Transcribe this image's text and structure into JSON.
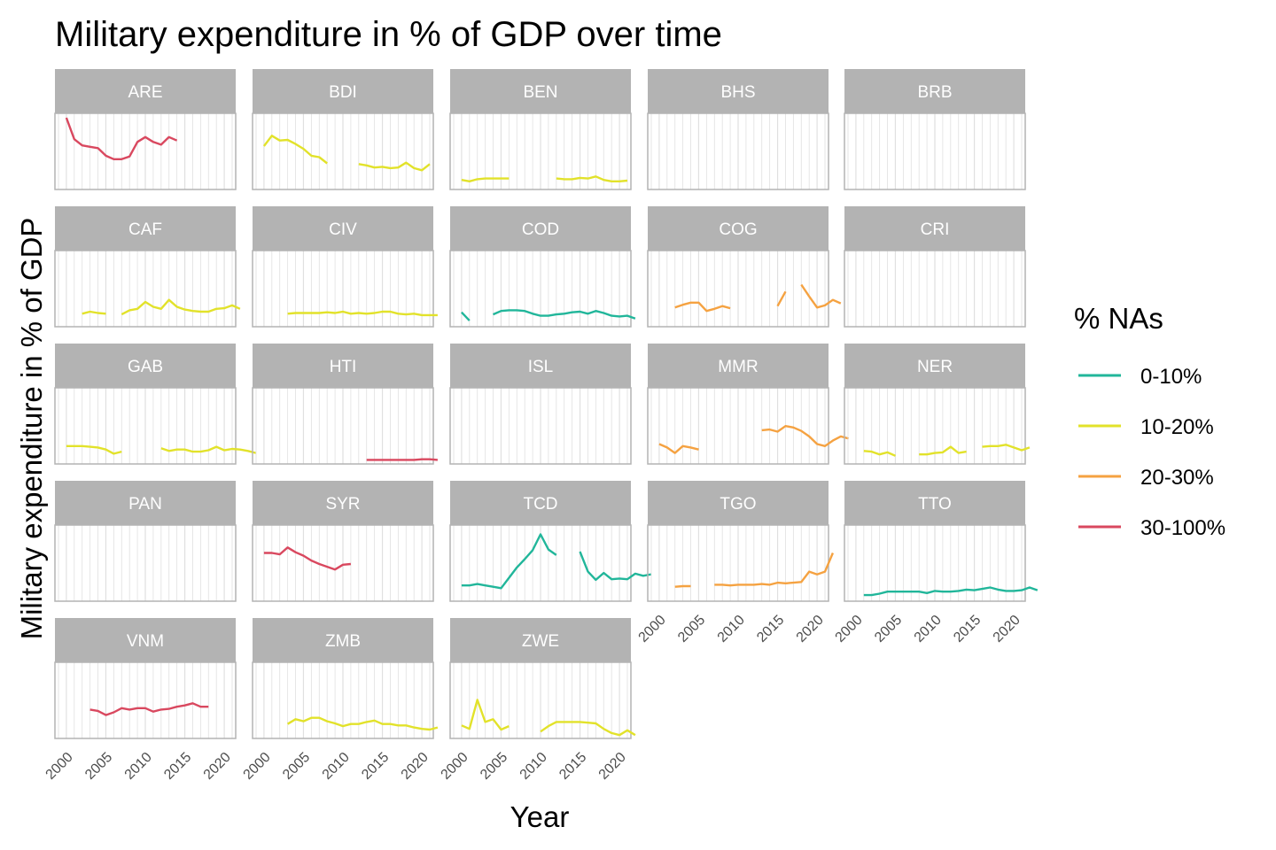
{
  "chart_data": {
    "type": "line",
    "title": "Military expenditure in % of GDP over time",
    "xlabel": "Year",
    "ylabel": "Military expenditure in % of GDP",
    "xlim": [
      1999,
      2021
    ],
    "x_ticks": [
      2000,
      2005,
      2010,
      2015,
      2020
    ],
    "grid": "vertical, yearly",
    "legend": {
      "title": "% NAs",
      "position": "right",
      "entries": [
        {
          "label": "0-10%",
          "color": "#21b69a"
        },
        {
          "label": "10-20%",
          "color": "#e2e22a"
        },
        {
          "label": "20-30%",
          "color": "#f5a241"
        },
        {
          "label": "30-100%",
          "color": "#d9485f"
        }
      ]
    },
    "panels": [
      {
        "label": "ARE",
        "na_group": "30-100%",
        "values": [
          1.0,
          0.69,
          0.6,
          0.58,
          0.56,
          0.45,
          0.4,
          0.4,
          0.44,
          0.65,
          0.72,
          0.65,
          0.61,
          0.72,
          0.67,
          null,
          null,
          null,
          null,
          null,
          null,
          null
        ]
      },
      {
        "label": "BDI",
        "na_group": "10-20%",
        "values": [
          0.59,
          0.74,
          0.67,
          0.68,
          0.62,
          0.55,
          0.45,
          0.43,
          0.34,
          null,
          null,
          null,
          0.33,
          0.31,
          0.28,
          0.29,
          0.27,
          0.28,
          0.35,
          0.27,
          0.24,
          0.33
        ]
      },
      {
        "label": "BEN",
        "na_group": "10-20%",
        "values": [
          0.1,
          0.08,
          0.11,
          0.12,
          0.12,
          0.12,
          0.12,
          null,
          null,
          null,
          null,
          null,
          0.12,
          0.11,
          0.11,
          0.13,
          0.12,
          0.15,
          0.1,
          0.08,
          0.08,
          0.09
        ]
      },
      {
        "label": "BHS",
        "na_group": "30-100%",
        "values": []
      },
      {
        "label": "BRB",
        "na_group": "30-100%",
        "values": []
      },
      {
        "label": "CAF",
        "na_group": "10-20%",
        "values": [
          null,
          null,
          0.15,
          0.18,
          0.16,
          0.15,
          null,
          0.14,
          0.2,
          0.22,
          0.32,
          0.25,
          0.22,
          0.35,
          0.25,
          0.21,
          0.19,
          0.18,
          0.18,
          0.22,
          0.23,
          0.27,
          0.22
        ]
      },
      {
        "label": "CIV",
        "na_group": "10-20%",
        "values": [
          null,
          null,
          null,
          0.15,
          0.16,
          0.16,
          0.16,
          0.16,
          0.17,
          0.16,
          0.18,
          0.15,
          0.16,
          0.15,
          0.16,
          0.18,
          0.18,
          0.15,
          0.14,
          0.15,
          0.13,
          0.13,
          0.13
        ]
      },
      {
        "label": "COD",
        "na_group": "0-10%",
        "values": [
          0.17,
          0.05,
          null,
          null,
          0.14,
          0.19,
          0.2,
          0.2,
          0.19,
          0.15,
          0.12,
          0.12,
          0.14,
          0.15,
          0.17,
          0.18,
          0.15,
          0.19,
          0.16,
          0.12,
          0.11,
          0.12,
          0.08
        ]
      },
      {
        "label": "COG",
        "na_group": "20-30%",
        "values": [
          null,
          null,
          0.24,
          0.28,
          0.31,
          0.31,
          0.19,
          0.22,
          0.26,
          0.23,
          null,
          null,
          null,
          null,
          null,
          0.26,
          0.47,
          null,
          0.57,
          0.4,
          0.24,
          0.27,
          0.35,
          0.3
        ]
      },
      {
        "label": "CRI",
        "na_group": "30-100%",
        "values": []
      },
      {
        "label": "GAB",
        "na_group": "10-20%",
        "values": [
          0.22,
          0.22,
          0.22,
          0.21,
          0.2,
          0.17,
          0.11,
          0.14,
          null,
          null,
          null,
          null,
          0.19,
          0.15,
          0.17,
          0.17,
          0.14,
          0.14,
          0.16,
          0.21,
          0.16,
          0.18,
          0.17,
          0.15,
          0.12
        ]
      },
      {
        "label": "HTI",
        "na_group": "30-100%",
        "values": [
          null,
          null,
          null,
          null,
          null,
          null,
          null,
          null,
          null,
          null,
          null,
          null,
          null,
          0.02,
          0.02,
          0.02,
          0.02,
          0.02,
          0.02,
          0.02,
          0.03,
          0.03,
          0.02
        ]
      },
      {
        "label": "ISL",
        "na_group": "30-100%",
        "values": []
      },
      {
        "label": "MMR",
        "na_group": "20-30%",
        "values": [
          0.25,
          0.2,
          0.12,
          0.22,
          0.2,
          0.17,
          null,
          null,
          null,
          null,
          null,
          null,
          null,
          0.45,
          0.46,
          0.43,
          0.51,
          0.49,
          0.44,
          0.36,
          0.25,
          0.22,
          0.3,
          0.36,
          0.33
        ]
      },
      {
        "label": "NER",
        "na_group": "10-20%",
        "values": [
          null,
          0.15,
          0.14,
          0.1,
          0.13,
          0.08,
          null,
          null,
          0.1,
          0.1,
          0.12,
          0.13,
          0.21,
          0.12,
          0.14,
          null,
          0.21,
          0.22,
          0.22,
          0.24,
          0.2,
          0.16,
          0.2
        ]
      },
      {
        "label": "PAN",
        "na_group": "30-100%",
        "values": []
      },
      {
        "label": "SYR",
        "na_group": "30-100%",
        "values": [
          0.66,
          0.66,
          0.64,
          0.74,
          0.67,
          0.62,
          0.55,
          0.5,
          0.46,
          0.42,
          0.49,
          0.5
        ]
      },
      {
        "label": "TCD",
        "na_group": "0-10%",
        "values": [
          0.19,
          0.19,
          0.21,
          0.19,
          0.17,
          0.15,
          0.3,
          0.45,
          0.57,
          0.7,
          0.93,
          0.71,
          0.63,
          null,
          null,
          0.68,
          0.39,
          0.27,
          0.37,
          0.28,
          0.29,
          0.28,
          0.36,
          0.33,
          0.35
        ]
      },
      {
        "label": "TGO",
        "na_group": "20-30%",
        "values": [
          null,
          null,
          0.17,
          0.18,
          0.18,
          null,
          null,
          0.2,
          0.2,
          0.19,
          0.2,
          0.2,
          0.2,
          0.21,
          0.2,
          0.23,
          0.22,
          0.23,
          0.24,
          0.39,
          0.35,
          0.39,
          0.66
        ]
      },
      {
        "label": "TTO",
        "na_group": "0-10%",
        "values": [
          null,
          0.05,
          0.05,
          0.07,
          0.1,
          0.1,
          0.1,
          0.1,
          0.1,
          0.08,
          0.11,
          0.1,
          0.1,
          0.11,
          0.13,
          0.12,
          0.14,
          0.16,
          0.13,
          0.11,
          0.11,
          0.12,
          0.16,
          0.12
        ]
      },
      {
        "label": "VNM",
        "na_group": "30-100%",
        "values": [
          null,
          null,
          null,
          0.38,
          0.36,
          0.3,
          0.34,
          0.4,
          0.38,
          0.4,
          0.4,
          0.35,
          0.38,
          0.39,
          0.42,
          0.44,
          0.47,
          0.42,
          0.42
        ]
      },
      {
        "label": "ZMB",
        "na_group": "10-20%",
        "values": [
          null,
          null,
          null,
          0.17,
          0.24,
          0.21,
          0.26,
          0.26,
          0.21,
          0.18,
          0.14,
          0.17,
          0.17,
          0.2,
          0.22,
          0.17,
          0.17,
          0.15,
          0.15,
          0.12,
          0.1,
          0.09,
          0.12
        ]
      },
      {
        "label": "ZWE",
        "na_group": "10-20%",
        "values": [
          0.15,
          0.1,
          0.52,
          0.2,
          0.24,
          0.09,
          0.14,
          null,
          null,
          null,
          0.06,
          0.14,
          0.2,
          0.2,
          0.2,
          0.2,
          0.19,
          0.18,
          0.1,
          0.04,
          0.01,
          0.08,
          0.01
        ]
      }
    ]
  }
}
